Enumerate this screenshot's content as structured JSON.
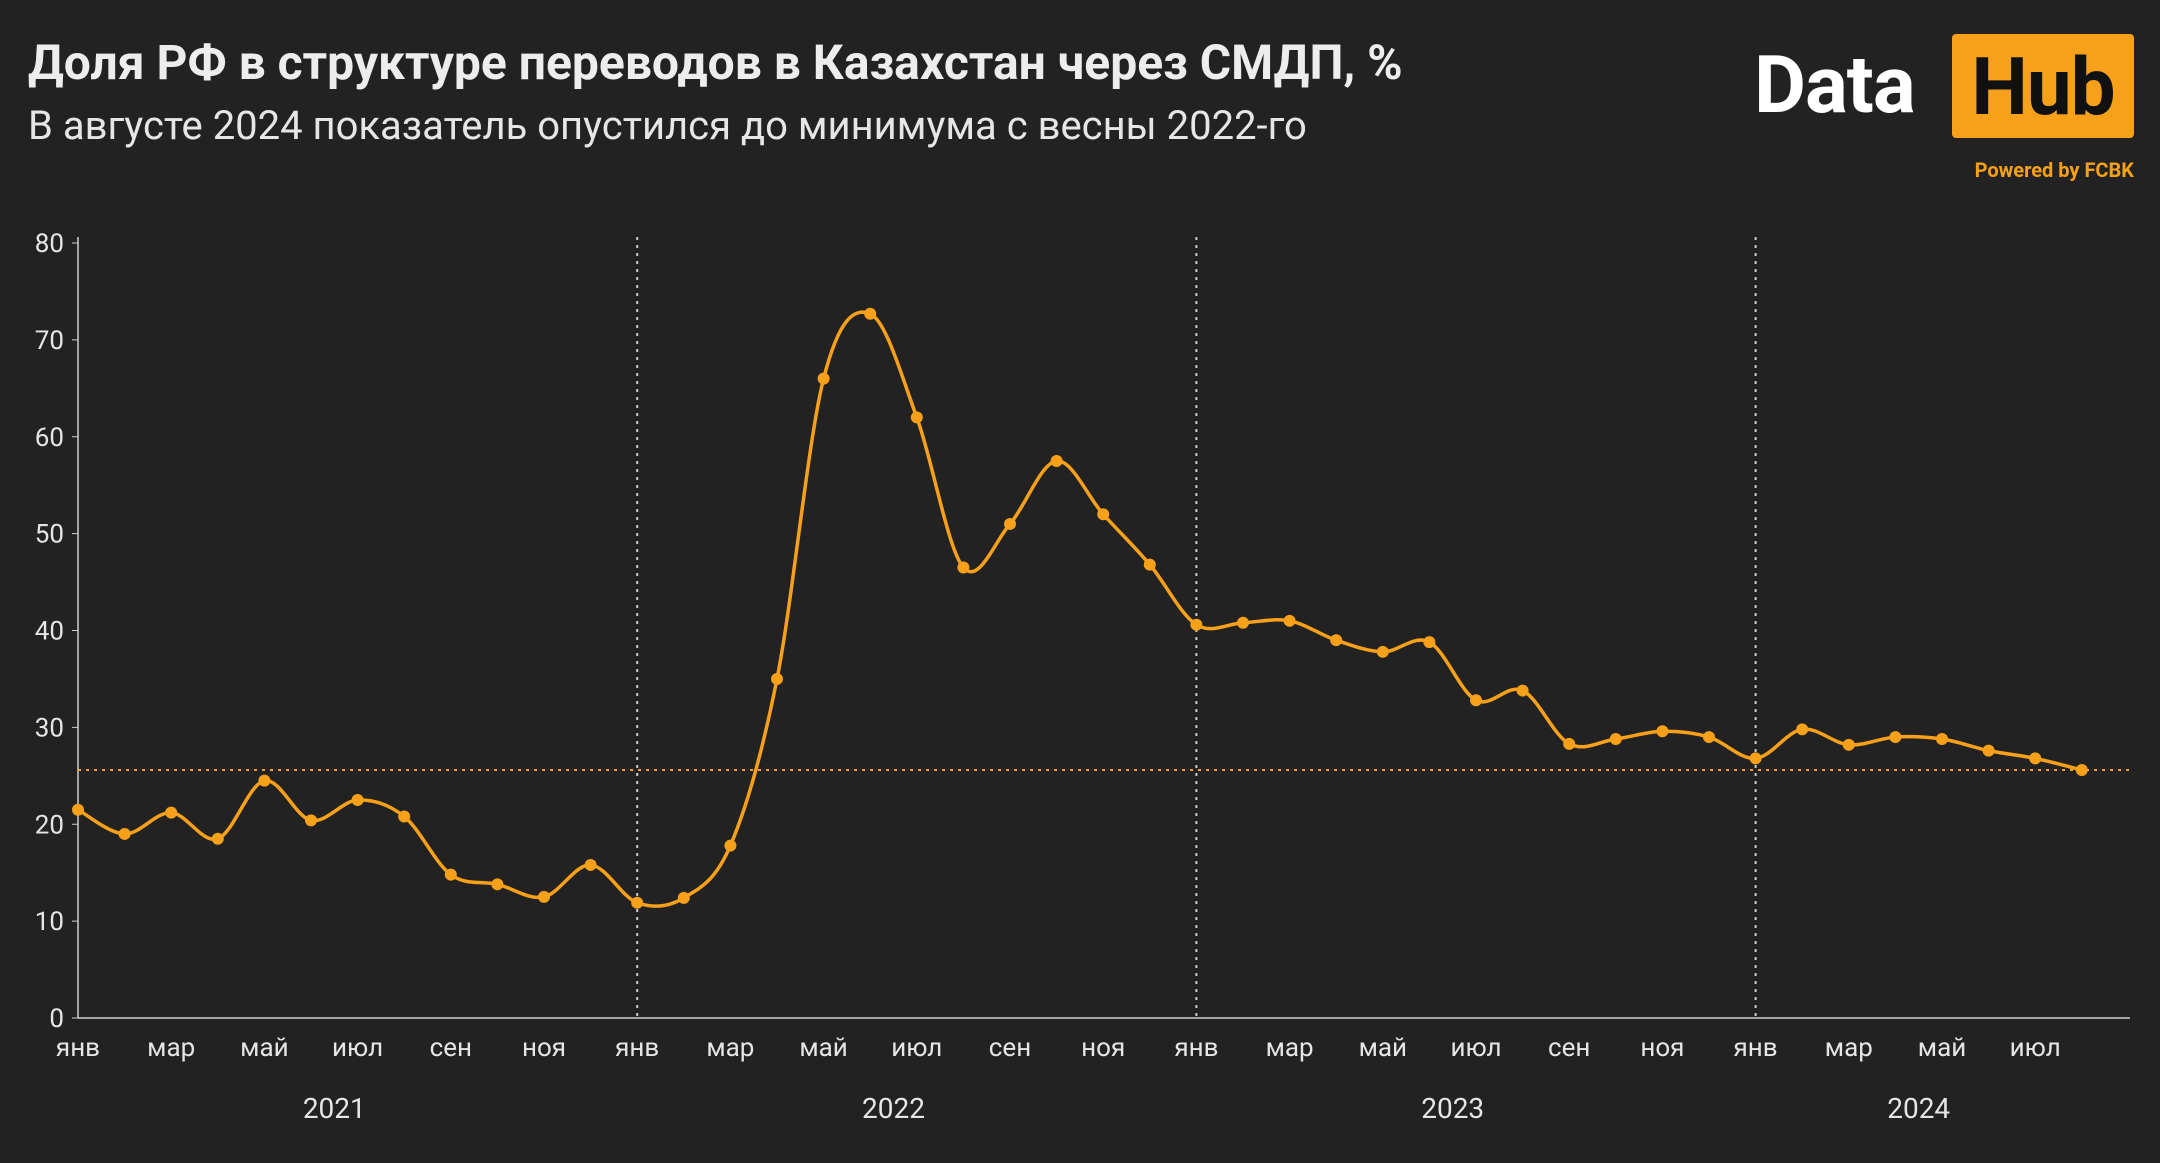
{
  "header": {
    "title": "Доля РФ в структуре переводов в Казахстан через СМДП, %",
    "subtitle": "В августе 2024 показатель опустился до минимума с весны 2022-го"
  },
  "logo": {
    "data": "Data",
    "hub": "Hub",
    "powered": "Powered by FCBK"
  },
  "colors": {
    "background": "#222222",
    "line": "#f7a01a",
    "reference_line": "#f7a01a",
    "separator": "#cccccc"
  },
  "chart_data": {
    "type": "line",
    "title": "Доля РФ в структуре переводов в Казахстан через СМДП, %",
    "ylim": [
      0,
      80
    ],
    "y_ticks": [
      0,
      10,
      20,
      30,
      40,
      50,
      60,
      70,
      80
    ],
    "x_tick_labels": [
      "янв",
      "мар",
      "май",
      "июл",
      "сен",
      "ноя",
      "янв",
      "мар",
      "май",
      "июл",
      "сен",
      "ноя",
      "янв",
      "мар",
      "май",
      "июл",
      "сен",
      "ноя",
      "янв",
      "мар",
      "май",
      "июл"
    ],
    "years": [
      "2021",
      "2022",
      "2023",
      "2024"
    ],
    "grid": false,
    "reference_line": {
      "y": 25.6,
      "style": "dotted"
    },
    "series": [
      {
        "x": [
          "2021-01",
          "2021-02",
          "2021-03",
          "2021-04",
          "2021-05",
          "2021-06",
          "2021-07",
          "2021-08",
          "2021-09",
          "2021-10",
          "2021-11",
          "2021-12",
          "2022-01",
          "2022-02",
          "2022-03",
          "2022-04",
          "2022-05",
          "2022-06",
          "2022-07",
          "2022-08",
          "2022-09",
          "2022-10",
          "2022-11",
          "2022-12",
          "2023-01",
          "2023-02",
          "2023-03",
          "2023-04",
          "2023-05",
          "2023-06",
          "2023-07",
          "2023-08",
          "2023-09",
          "2023-10",
          "2023-11",
          "2023-12",
          "2024-01",
          "2024-02",
          "2024-03",
          "2024-04",
          "2024-05",
          "2024-06",
          "2024-07",
          "2024-08"
        ],
        "values": [
          21.5,
          19.0,
          21.2,
          18.5,
          24.5,
          20.4,
          22.5,
          20.8,
          14.8,
          13.8,
          12.5,
          15.8,
          11.9,
          12.4,
          17.8,
          35.0,
          66.0,
          72.7,
          62.0,
          46.5,
          51.0,
          57.5,
          52.0,
          46.8,
          40.6,
          40.8,
          41.0,
          39.0,
          37.8,
          38.8,
          32.8,
          33.8,
          28.3,
          28.8,
          29.6,
          29.0,
          26.8,
          29.8,
          28.2,
          29.0,
          28.8,
          27.6,
          26.8,
          25.6
        ]
      }
    ]
  }
}
